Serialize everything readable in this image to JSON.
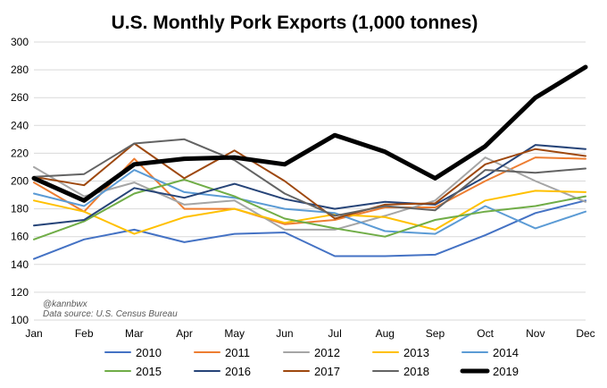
{
  "chart_data": {
    "type": "line",
    "title": "U.S. Monthly Pork Exports (1,000 tonnes)",
    "xlabel": "",
    "ylabel": "",
    "categories": [
      "Jan",
      "Feb",
      "Mar",
      "Apr",
      "May",
      "Jun",
      "Jul",
      "Aug",
      "Sep",
      "Oct",
      "Nov",
      "Dec"
    ],
    "ylim": [
      100,
      300
    ],
    "yticks": [
      100,
      120,
      140,
      160,
      180,
      200,
      220,
      240,
      260,
      280,
      300
    ],
    "grid": true,
    "legend": "bottom",
    "annotations": [
      "@kannbwx",
      "Data source: U.S. Census Bureau"
    ],
    "series": [
      {
        "name": "2010",
        "color": "#4472c4",
        "width": 2,
        "values": [
          144,
          158,
          165,
          156,
          162,
          163,
          146,
          146,
          147,
          161,
          177,
          186
        ]
      },
      {
        "name": "2011",
        "color": "#ed7d31",
        "width": 2,
        "values": [
          199,
          178,
          216,
          180,
          180,
          169,
          172,
          181,
          181,
          200,
          217,
          216
        ]
      },
      {
        "name": "2012",
        "color": "#a5a5a5",
        "width": 2,
        "values": [
          210,
          189,
          199,
          183,
          186,
          165,
          165,
          175,
          186,
          217,
          200,
          185
        ]
      },
      {
        "name": "2013",
        "color": "#ffc000",
        "width": 2,
        "values": [
          186,
          178,
          162,
          174,
          180,
          170,
          176,
          174,
          165,
          186,
          193,
          192
        ]
      },
      {
        "name": "2014",
        "color": "#5b9bd5",
        "width": 2,
        "values": [
          191,
          182,
          208,
          192,
          188,
          180,
          177,
          164,
          162,
          182,
          166,
          178
        ]
      },
      {
        "name": "2015",
        "color": "#70ad47",
        "width": 2,
        "values": [
          158,
          171,
          191,
          201,
          189,
          173,
          166,
          160,
          172,
          178,
          182,
          189
        ]
      },
      {
        "name": "2016",
        "color": "#264478",
        "width": 2,
        "values": [
          168,
          172,
          195,
          188,
          198,
          187,
          180,
          185,
          183,
          203,
          226,
          223
        ]
      },
      {
        "name": "2017",
        "color": "#9e480e",
        "width": 2,
        "values": [
          203,
          197,
          227,
          202,
          222,
          200,
          173,
          183,
          184,
          212,
          223,
          218
        ]
      },
      {
        "name": "2018",
        "color": "#636363",
        "width": 2,
        "values": [
          203,
          205,
          227,
          230,
          215,
          191,
          175,
          182,
          179,
          208,
          206,
          209
        ]
      },
      {
        "name": "2019",
        "color": "#000000",
        "width": 5,
        "values": [
          202,
          186,
          212,
          216,
          217,
          212,
          233,
          221,
          202,
          225,
          260,
          282
        ]
      }
    ]
  }
}
